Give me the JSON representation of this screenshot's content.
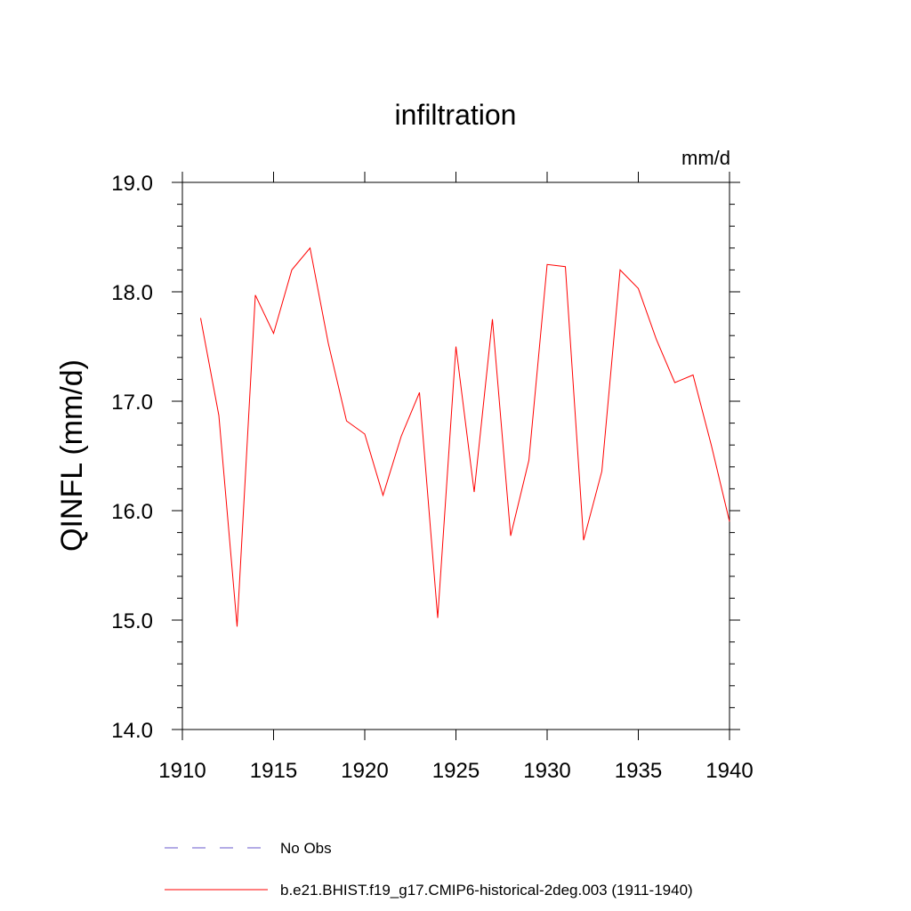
{
  "chart_data": {
    "type": "line",
    "title": "infiltration",
    "units": "mm/d",
    "ylabel": "QINFL  (mm/d)",
    "xlabel": "",
    "xlim": [
      1910,
      1940
    ],
    "ylim": [
      14.0,
      19.0
    ],
    "x_ticks": [
      "1910",
      "1915",
      "1920",
      "1925",
      "1930",
      "1935",
      "1940"
    ],
    "y_ticks": [
      "14.0",
      "15.0",
      "16.0",
      "17.0",
      "18.0",
      "19.0"
    ],
    "grid": false,
    "legend_position": "bottom",
    "series": [
      {
        "name": "b.e21.BHIST.f19_g17.CMIP6-historical-2deg.003 (1911-1940)",
        "color": "#ff0000",
        "style": "solid",
        "x": [
          1911,
          1912,
          1913,
          1914,
          1915,
          1916,
          1917,
          1918,
          1919,
          1920,
          1921,
          1922,
          1923,
          1924,
          1925,
          1926,
          1927,
          1928,
          1929,
          1930,
          1931,
          1932,
          1933,
          1934,
          1935,
          1936,
          1937,
          1938,
          1939,
          1940
        ],
        "y": [
          17.76,
          16.87,
          14.94,
          17.97,
          17.62,
          18.2,
          18.4,
          17.53,
          16.82,
          16.7,
          16.14,
          16.68,
          17.08,
          15.02,
          17.5,
          16.17,
          17.75,
          15.77,
          16.46,
          18.25,
          18.23,
          15.73,
          16.36,
          18.2,
          18.03,
          17.56,
          17.17,
          17.24,
          16.6,
          15.9
        ]
      }
    ],
    "legend": [
      {
        "label": "No Obs",
        "color": "#6a5acd",
        "style": "dashed"
      },
      {
        "label": "b.e21.BHIST.f19_g17.CMIP6-historical-2deg.003 (1911-1940)",
        "color": "#ff0000",
        "style": "solid"
      }
    ]
  }
}
